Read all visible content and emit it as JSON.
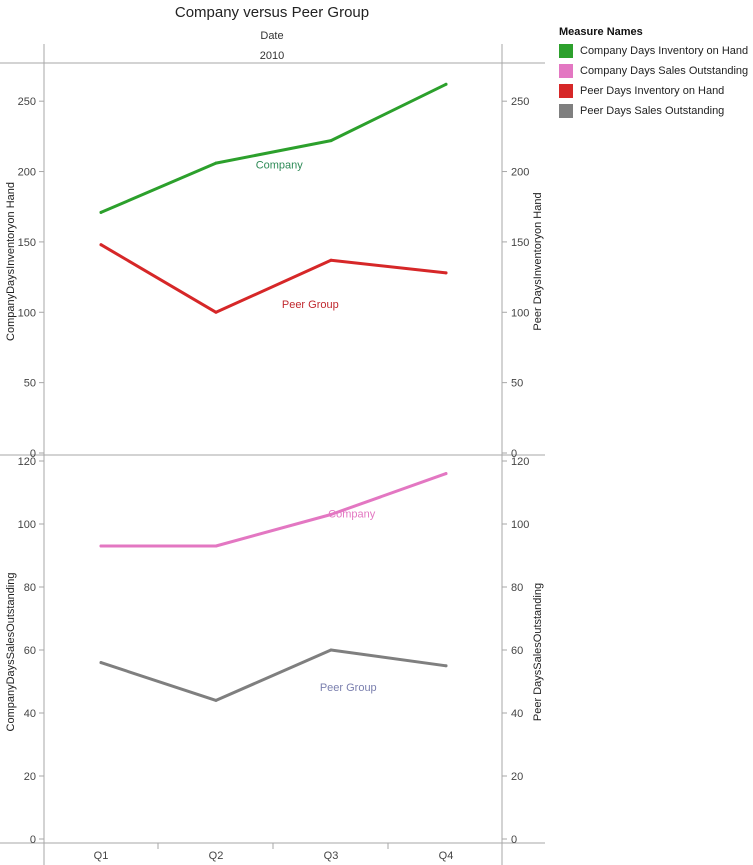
{
  "chart_data": {
    "type": "line",
    "title": "Company versus Peer Group",
    "column_header": "Date",
    "column_value": "2010",
    "categories": [
      "Q1",
      "Q2",
      "Q3",
      "Q4"
    ],
    "legend": {
      "title": "Measure Names",
      "placement": "right",
      "items": [
        {
          "name": "Company Days Inventory on Hand",
          "color": "#2ca02c"
        },
        {
          "name": "Company Days Sales Outstanding",
          "color": "#e377c2"
        },
        {
          "name": "Peer Days Inventory on Hand",
          "color": "#d62728"
        },
        {
          "name": "Peer Days Sales Outstanding",
          "color": "#7f7f7f"
        }
      ]
    },
    "panels": [
      {
        "left_label": "CompanyDaysInventoryon Hand",
        "right_label": "Peer DaysInventoryon Hand",
        "ylim": [
          0,
          275
        ],
        "ticks": [
          0,
          50,
          100,
          150,
          200,
          250
        ],
        "series": [
          {
            "name": "Company Days Inventory on Hand",
            "color": "#2ca02c",
            "values": [
              171,
              206,
              222,
              262
            ],
            "annotation": {
              "text": "Company",
              "color": "#2e8b57",
              "at": [
                1.55,
                202
              ]
            }
          },
          {
            "name": "Peer Days Inventory on Hand",
            "color": "#d62728",
            "values": [
              148,
              100,
              137,
              128
            ],
            "annotation": {
              "text": "Peer Group",
              "color": "#c0282e",
              "at": [
                1.82,
                103
              ]
            }
          }
        ]
      },
      {
        "left_label": "CompanyDaysSalesOutstanding",
        "right_label": "Peer DaysSalesOutstanding",
        "ylim": [
          0,
          120
        ],
        "ticks": [
          0,
          20,
          40,
          60,
          80,
          100,
          120
        ],
        "series": [
          {
            "name": "Company Days Sales Outstanding",
            "color": "#e377c2",
            "values": [
              93,
              93,
              103,
              116
            ],
            "annotation": {
              "text": "Company",
              "color": "#e377c2",
              "at": [
                2.18,
                102
              ]
            }
          },
          {
            "name": "Peer Days Sales Outstanding",
            "color": "#7f7f7f",
            "values": [
              56,
              44,
              60,
              55
            ],
            "annotation": {
              "text": "Peer Group",
              "color": "#7a7fae",
              "at": [
                2.15,
                47
              ]
            }
          }
        ]
      }
    ]
  }
}
